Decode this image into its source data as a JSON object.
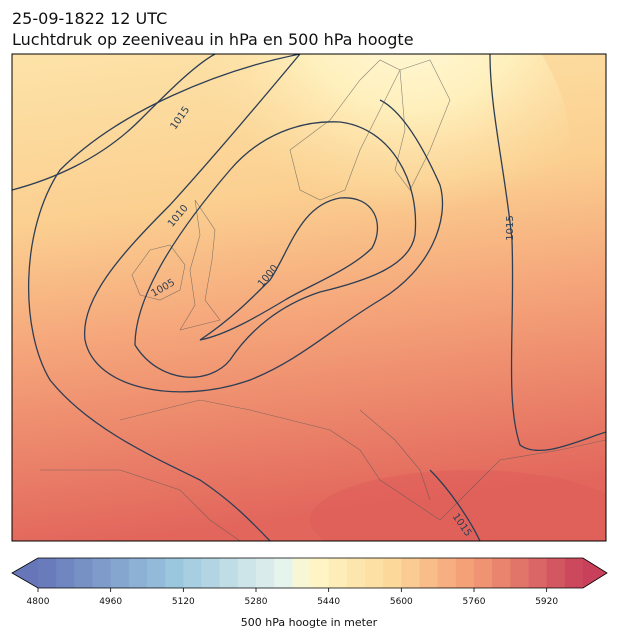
{
  "header": {
    "title": "25-09-1822 12 UTC",
    "subtitle": "Luchtdruk op zeeniveau in hPa en 500 hPa hoogte"
  },
  "isobar_labels": [
    1015,
    1010,
    1005,
    1000,
    1015,
    1015
  ],
  "colorbar": {
    "lim": [
      4800,
      6000
    ],
    "step": 40,
    "ticks": [
      4800,
      4960,
      5120,
      5280,
      5440,
      5600,
      5760,
      5920
    ],
    "label": "500 hPa hoogte in meter"
  }
}
